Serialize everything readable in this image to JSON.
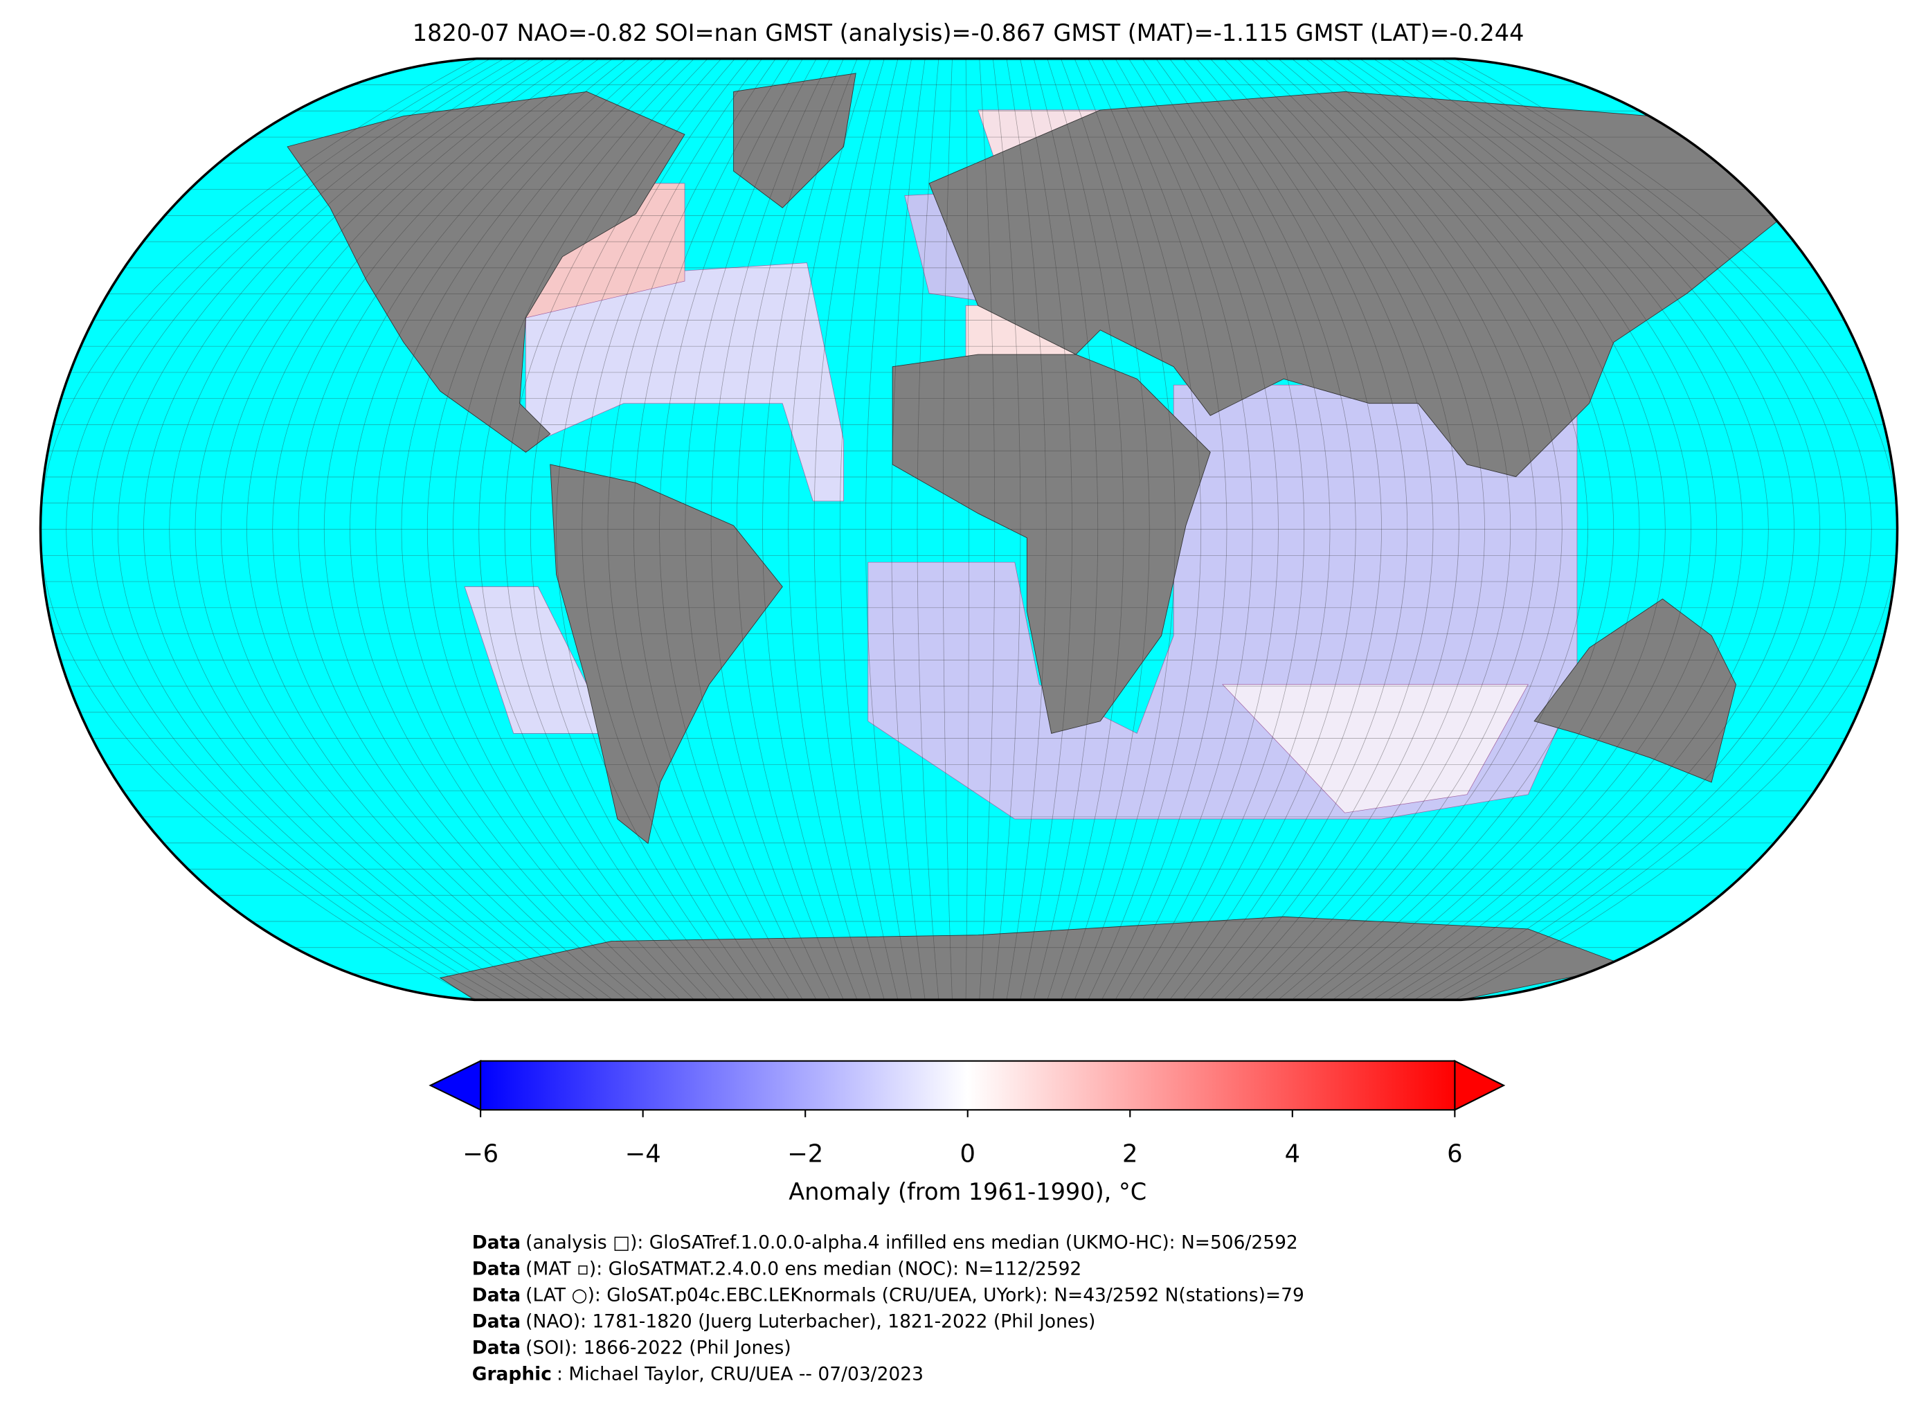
{
  "header": {
    "title": "1820-07 NAO=-0.82 SOI=nan GMST (analysis)=-0.867 GMST (MAT)=-1.115 GMST (LAT)=-0.244"
  },
  "chart_data": {
    "type": "colorbar",
    "colors": [
      "#0000ff",
      "#ffffff",
      "#ff0000"
    ],
    "xlim": [
      -6,
      6
    ],
    "xticks": [
      {
        "value": -6,
        "label": "−6"
      },
      {
        "value": -4,
        "label": "−4"
      },
      {
        "value": -2,
        "label": "−2"
      },
      0,
      2,
      4,
      6
    ],
    "xlabel": "Anomaly (from 1961-1990), °C"
  },
  "footer": {
    "lines": [
      {
        "label": "Data",
        "text": "(analysis □): GloSATref.1.0.0.0-alpha.4 infilled ens median (UKMO-HC): N=506/2592"
      },
      {
        "label": "Data",
        "text": "(MAT ▫): GloSATMAT.2.4.0.0 ens median (NOC): N=112/2592"
      },
      {
        "label": "Data",
        "text": "(LAT ○): GloSAT.p04c.EBC.LEKnormals (CRU/UEA, UYork): N=43/2592 N(stations)=79"
      },
      {
        "label": "Data",
        "text": "(NAO): 1781-1820 (Juerg Luterbacher), 1821-2022 (Phil Jones)"
      },
      {
        "label": "Data",
        "text": "(SOI): 1866-2022 (Phil Jones)"
      },
      {
        "label": "Graphic",
        "text": ": Michael Taylor, CRU/UEA -- 07/03/2023"
      }
    ]
  }
}
